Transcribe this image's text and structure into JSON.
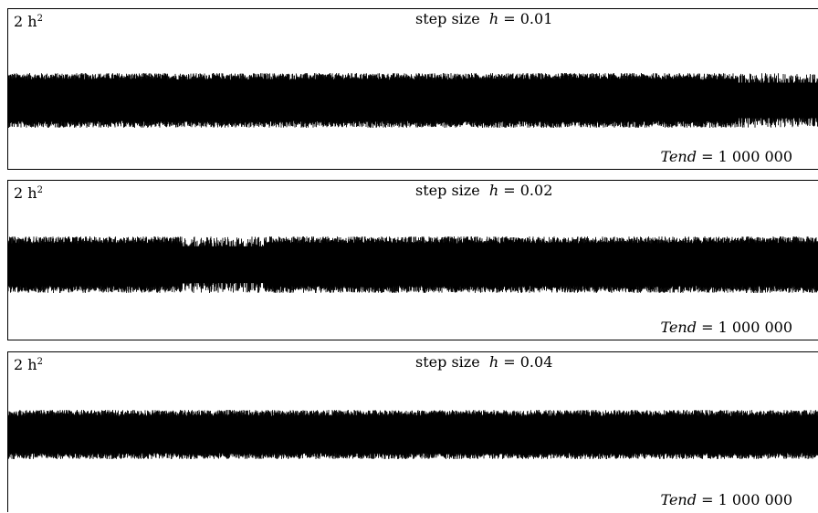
{
  "chart_data": [
    {
      "type": "line",
      "ylabel": "2 h",
      "ylabel_exp": "2",
      "title_prefix": "step size",
      "title_var": "h",
      "title_value": "= 0.01",
      "annotation_var": "Tend",
      "annotation_value": "= 1 000 000",
      "h": 0.01,
      "tend": 1000000,
      "xlim": [
        0,
        1000000
      ],
      "grid": false,
      "color": "#000000"
    },
    {
      "type": "line",
      "ylabel": "2 h",
      "ylabel_exp": "2",
      "title_prefix": "step size",
      "title_var": "h",
      "title_value": "= 0.02",
      "annotation_var": "Tend",
      "annotation_value": "= 1 000 000",
      "h": 0.02,
      "tend": 1000000,
      "xlim": [
        0,
        1000000
      ],
      "grid": false,
      "color": "#000000"
    },
    {
      "type": "line",
      "ylabel": "2 h",
      "ylabel_exp": "2",
      "title_prefix": "step size",
      "title_var": "h",
      "title_value": "= 0.04",
      "annotation_var": "Tend",
      "annotation_value": "= 1 000 000",
      "h": 0.04,
      "tend": 1000000,
      "xlim": [
        0,
        1000000
      ],
      "grid": false,
      "color": "#000000"
    }
  ]
}
